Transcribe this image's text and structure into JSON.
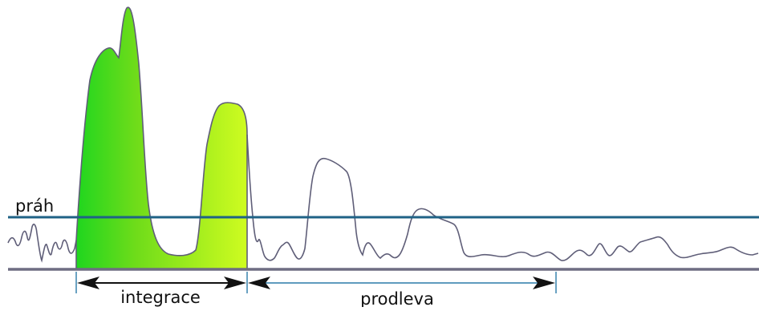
{
  "diagram": {
    "threshold_label": "práh",
    "integration_label": "integrace",
    "delay_label": "prodleva",
    "colors": {
      "signal": "#5f5e78",
      "threshold": "#1f6286",
      "baseline": "#6e6d82",
      "fill_start": "#1fd61f",
      "fill_mid": "#6fdc1a",
      "fill_end": "#cffc20",
      "arrow": "#111111",
      "bracket": "#2a7aa8"
    }
  }
}
